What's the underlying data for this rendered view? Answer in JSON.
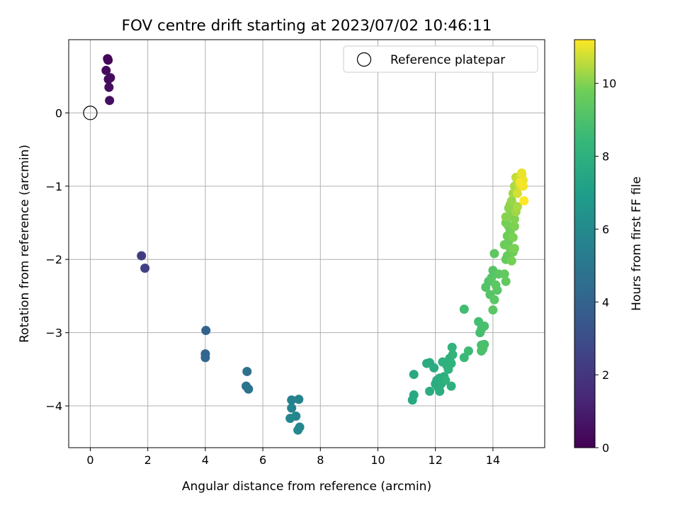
{
  "chart_data": {
    "type": "scatter",
    "title": "FOV centre drift starting at 2023/07/02 10:46:11",
    "xlabel": "Angular distance from reference (arcmin)",
    "ylabel": "Rotation from reference (arcmin)",
    "xlim": [
      -0.75,
      15.8
    ],
    "ylim": [
      -4.57,
      1.0
    ],
    "xticks": [
      0,
      2,
      4,
      6,
      8,
      10,
      12,
      14
    ],
    "yticks": [
      0,
      -1,
      -2,
      -3,
      -4
    ],
    "xtick_labels": [
      "0",
      "2",
      "4",
      "6",
      "8",
      "10",
      "12",
      "14"
    ],
    "ytick_labels": [
      "0",
      "−1",
      "−2",
      "−3",
      "−4"
    ],
    "grid": true,
    "legend": {
      "position": "top-right",
      "label": "Reference platepar"
    },
    "reference_point": {
      "x": 0,
      "y": 0
    },
    "colorbar": {
      "label": "Hours from first FF file",
      "min": 0,
      "max": 11.2,
      "ticks": [
        0,
        2,
        4,
        6,
        8,
        10
      ],
      "tick_labels": [
        "0",
        "2",
        "4",
        "6",
        "8",
        "10"
      ],
      "colormap": "viridis"
    },
    "points": [
      {
        "x": 0.6,
        "y": 0.74,
        "c": 0.1
      },
      {
        "x": 0.62,
        "y": 0.72,
        "c": 0.2
      },
      {
        "x": 0.55,
        "y": 0.58,
        "c": 0.3
      },
      {
        "x": 0.7,
        "y": 0.48,
        "c": 0.35
      },
      {
        "x": 0.63,
        "y": 0.46,
        "c": 0.4
      },
      {
        "x": 0.65,
        "y": 0.35,
        "c": 0.45
      },
      {
        "x": 0.67,
        "y": 0.17,
        "c": 0.5
      },
      {
        "x": 1.78,
        "y": -1.95,
        "c": 2.3
      },
      {
        "x": 1.9,
        "y": -2.12,
        "c": 2.5
      },
      {
        "x": 4.02,
        "y": -2.97,
        "c": 4.0
      },
      {
        "x": 4.0,
        "y": -3.29,
        "c": 4.1
      },
      {
        "x": 4.0,
        "y": -3.34,
        "c": 4.15
      },
      {
        "x": 5.45,
        "y": -3.53,
        "c": 4.7
      },
      {
        "x": 5.42,
        "y": -3.73,
        "c": 4.75
      },
      {
        "x": 5.5,
        "y": -3.77,
        "c": 4.8
      },
      {
        "x": 7.0,
        "y": -3.92,
        "c": 5.6
      },
      {
        "x": 7.25,
        "y": -3.91,
        "c": 5.65
      },
      {
        "x": 7.0,
        "y": -4.03,
        "c": 5.7
      },
      {
        "x": 7.15,
        "y": -4.14,
        "c": 5.75
      },
      {
        "x": 6.95,
        "y": -4.17,
        "c": 5.8
      },
      {
        "x": 7.28,
        "y": -4.29,
        "c": 5.85
      },
      {
        "x": 7.22,
        "y": -4.33,
        "c": 5.9
      },
      {
        "x": 11.25,
        "y": -3.57,
        "c": 7.6
      },
      {
        "x": 11.25,
        "y": -3.85,
        "c": 7.6
      },
      {
        "x": 11.2,
        "y": -3.92,
        "c": 7.6
      },
      {
        "x": 11.7,
        "y": -3.42,
        "c": 7.7
      },
      {
        "x": 11.8,
        "y": -3.41,
        "c": 7.7
      },
      {
        "x": 11.95,
        "y": -3.48,
        "c": 7.7
      },
      {
        "x": 11.8,
        "y": -3.8,
        "c": 7.8
      },
      {
        "x": 12.05,
        "y": -3.65,
        "c": 7.8
      },
      {
        "x": 12.1,
        "y": -3.75,
        "c": 7.8
      },
      {
        "x": 12.15,
        "y": -3.8,
        "c": 7.9
      },
      {
        "x": 12.2,
        "y": -3.7,
        "c": 7.9
      },
      {
        "x": 12.3,
        "y": -3.6,
        "c": 7.9
      },
      {
        "x": 12.25,
        "y": -3.4,
        "c": 8.0
      },
      {
        "x": 12.4,
        "y": -3.45,
        "c": 8.0
      },
      {
        "x": 12.5,
        "y": -3.35,
        "c": 8.0
      },
      {
        "x": 12.55,
        "y": -3.42,
        "c": 8.1
      },
      {
        "x": 12.45,
        "y": -3.5,
        "c": 8.1
      },
      {
        "x": 12.35,
        "y": -3.65,
        "c": 8.1
      },
      {
        "x": 12.6,
        "y": -3.3,
        "c": 8.2
      },
      {
        "x": 12.58,
        "y": -3.2,
        "c": 8.2
      },
      {
        "x": 12.55,
        "y": -3.73,
        "c": 8.0
      },
      {
        "x": 12.0,
        "y": -3.7,
        "c": 7.8
      },
      {
        "x": 12.15,
        "y": -3.62,
        "c": 7.9
      },
      {
        "x": 13.0,
        "y": -3.34,
        "c": 8.5
      },
      {
        "x": 13.15,
        "y": -3.25,
        "c": 8.6
      },
      {
        "x": 13.0,
        "y": -2.68,
        "c": 8.7
      },
      {
        "x": 13.5,
        "y": -2.85,
        "c": 8.8
      },
      {
        "x": 13.6,
        "y": -2.95,
        "c": 8.8
      },
      {
        "x": 13.55,
        "y": -3.0,
        "c": 8.85
      },
      {
        "x": 13.7,
        "y": -2.91,
        "c": 8.9
      },
      {
        "x": 13.6,
        "y": -3.17,
        "c": 8.9
      },
      {
        "x": 13.7,
        "y": -3.16,
        "c": 8.9
      },
      {
        "x": 13.6,
        "y": -3.25,
        "c": 8.95
      },
      {
        "x": 13.65,
        "y": -3.22,
        "c": 8.95
      },
      {
        "x": 13.75,
        "y": -2.38,
        "c": 9.1
      },
      {
        "x": 13.85,
        "y": -2.3,
        "c": 9.1
      },
      {
        "x": 13.9,
        "y": -2.48,
        "c": 9.2
      },
      {
        "x": 14.0,
        "y": -2.15,
        "c": 9.2
      },
      {
        "x": 13.95,
        "y": -2.25,
        "c": 9.25
      },
      {
        "x": 14.05,
        "y": -2.55,
        "c": 9.3
      },
      {
        "x": 14.15,
        "y": -2.42,
        "c": 9.3
      },
      {
        "x": 14.0,
        "y": -2.69,
        "c": 9.3
      },
      {
        "x": 14.2,
        "y": -2.2,
        "c": 9.35
      },
      {
        "x": 14.1,
        "y": -2.35,
        "c": 9.35
      },
      {
        "x": 14.05,
        "y": -1.92,
        "c": 9.4
      },
      {
        "x": 14.45,
        "y": -2.3,
        "c": 9.5
      },
      {
        "x": 14.4,
        "y": -2.2,
        "c": 9.5
      },
      {
        "x": 14.45,
        "y": -2.0,
        "c": 9.6
      },
      {
        "x": 14.5,
        "y": -1.95,
        "c": 9.6
      },
      {
        "x": 14.4,
        "y": -1.8,
        "c": 9.7
      },
      {
        "x": 14.55,
        "y": -1.75,
        "c": 9.7
      },
      {
        "x": 14.5,
        "y": -1.68,
        "c": 9.75
      },
      {
        "x": 14.6,
        "y": -1.62,
        "c": 9.8
      },
      {
        "x": 14.55,
        "y": -1.55,
        "c": 9.8
      },
      {
        "x": 14.45,
        "y": -1.5,
        "c": 9.85
      },
      {
        "x": 14.6,
        "y": -1.85,
        "c": 9.8
      },
      {
        "x": 14.7,
        "y": -1.9,
        "c": 9.8
      },
      {
        "x": 14.65,
        "y": -2.02,
        "c": 9.85
      },
      {
        "x": 14.75,
        "y": -1.85,
        "c": 9.9
      },
      {
        "x": 14.7,
        "y": -1.7,
        "c": 9.9
      },
      {
        "x": 14.75,
        "y": -1.55,
        "c": 9.95
      },
      {
        "x": 14.75,
        "y": -1.45,
        "c": 10.0
      },
      {
        "x": 14.65,
        "y": -1.35,
        "c": 10.0
      },
      {
        "x": 14.6,
        "y": -1.4,
        "c": 10.0
      },
      {
        "x": 14.45,
        "y": -1.42,
        "c": 10.05
      },
      {
        "x": 14.55,
        "y": -1.3,
        "c": 10.1
      },
      {
        "x": 14.6,
        "y": -1.25,
        "c": 10.1
      },
      {
        "x": 14.65,
        "y": -1.2,
        "c": 10.2
      },
      {
        "x": 14.7,
        "y": -1.1,
        "c": 10.3
      },
      {
        "x": 14.75,
        "y": -1.0,
        "c": 10.4
      },
      {
        "x": 14.8,
        "y": -1.05,
        "c": 10.4
      },
      {
        "x": 14.85,
        "y": -0.95,
        "c": 10.5
      },
      {
        "x": 14.8,
        "y": -1.35,
        "c": 10.3
      },
      {
        "x": 14.85,
        "y": -1.28,
        "c": 10.4
      },
      {
        "x": 14.8,
        "y": -0.88,
        "c": 10.6
      },
      {
        "x": 14.9,
        "y": -0.9,
        "c": 10.7
      },
      {
        "x": 14.95,
        "y": -1.0,
        "c": 10.8
      },
      {
        "x": 15.0,
        "y": -0.85,
        "c": 10.9
      },
      {
        "x": 15.05,
        "y": -0.92,
        "c": 11.0
      },
      {
        "x": 15.0,
        "y": -0.82,
        "c": 11.0
      },
      {
        "x": 15.05,
        "y": -1.0,
        "c": 11.1
      },
      {
        "x": 15.08,
        "y": -1.2,
        "c": 11.2
      },
      {
        "x": 14.95,
        "y": -0.95,
        "c": 11.1
      },
      {
        "x": 14.85,
        "y": -1.1,
        "c": 10.8
      }
    ]
  }
}
